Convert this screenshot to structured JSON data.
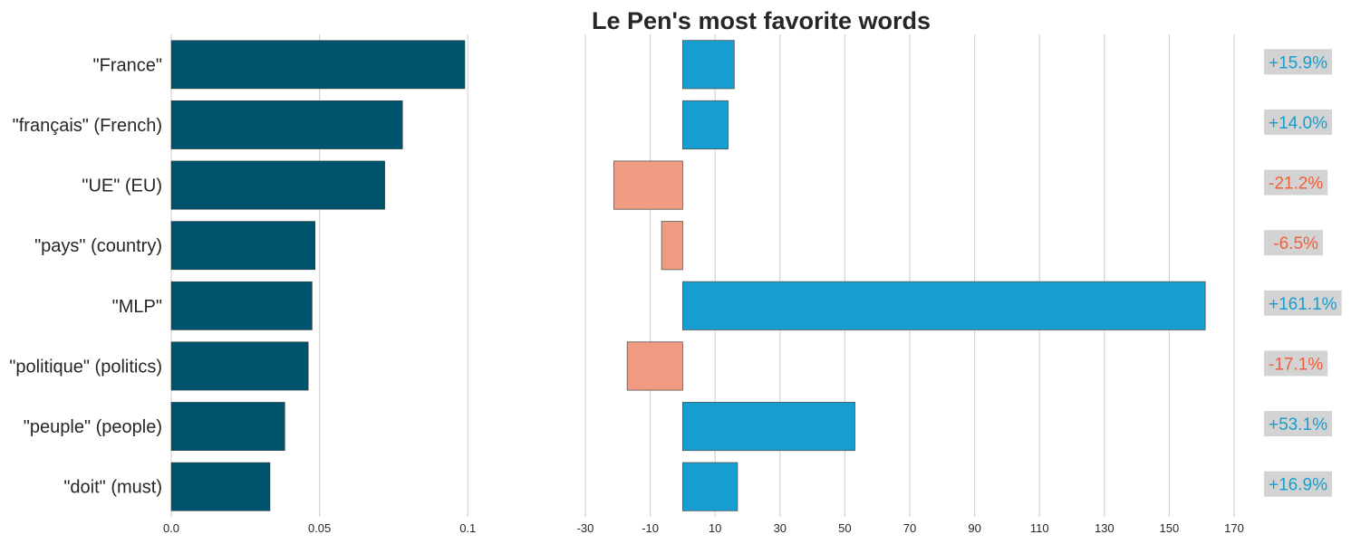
{
  "chart_data": {
    "title": "Le Pen's most favorite words",
    "categories": [
      "\"France\"",
      "\"français\" (French)",
      "\"UE\" (EU)",
      "\"pays\" (country)",
      "\"MLP\"",
      "\"politique\" (politics)",
      "\"peuple\" (people)",
      "\"doit\" (must)"
    ],
    "panels": [
      {
        "type": "bar",
        "orientation": "horizontal",
        "values": [
          0.099,
          0.078,
          0.072,
          0.0485,
          0.0475,
          0.0462,
          0.0383,
          0.0333
        ],
        "xlim": [
          0,
          0.11
        ],
        "xticks": [
          0.0,
          0.05,
          0.1
        ],
        "xtick_labels": [
          "0.0",
          "0.05",
          "0.1"
        ],
        "color": "#00536c",
        "grid": true
      },
      {
        "type": "bar",
        "orientation": "horizontal",
        "values": [
          15.9,
          14.0,
          -21.2,
          -6.5,
          161.1,
          -17.1,
          53.1,
          16.9
        ],
        "xlim": [
          -30,
          170
        ],
        "xticks": [
          -30,
          -10,
          10,
          30,
          50,
          70,
          90,
          110,
          130,
          150,
          170
        ],
        "xtick_labels": [
          "-30",
          "-10",
          "10",
          "30",
          "50",
          "70",
          "90",
          "110",
          "130",
          "150",
          "170"
        ],
        "positive_color": "#159ecf",
        "negative_color": "#f09c82",
        "grid": true
      }
    ],
    "annotations": [
      "+15.9%",
      "+14.0%",
      "-21.2%",
      " -6.5%",
      "+161.1%",
      "-17.1%",
      "+53.1%",
      "+16.9%"
    ],
    "annotation_colors": {
      "positive": "#159ecf",
      "negative": "#f05f3c",
      "background": "#d3d3d3"
    }
  }
}
